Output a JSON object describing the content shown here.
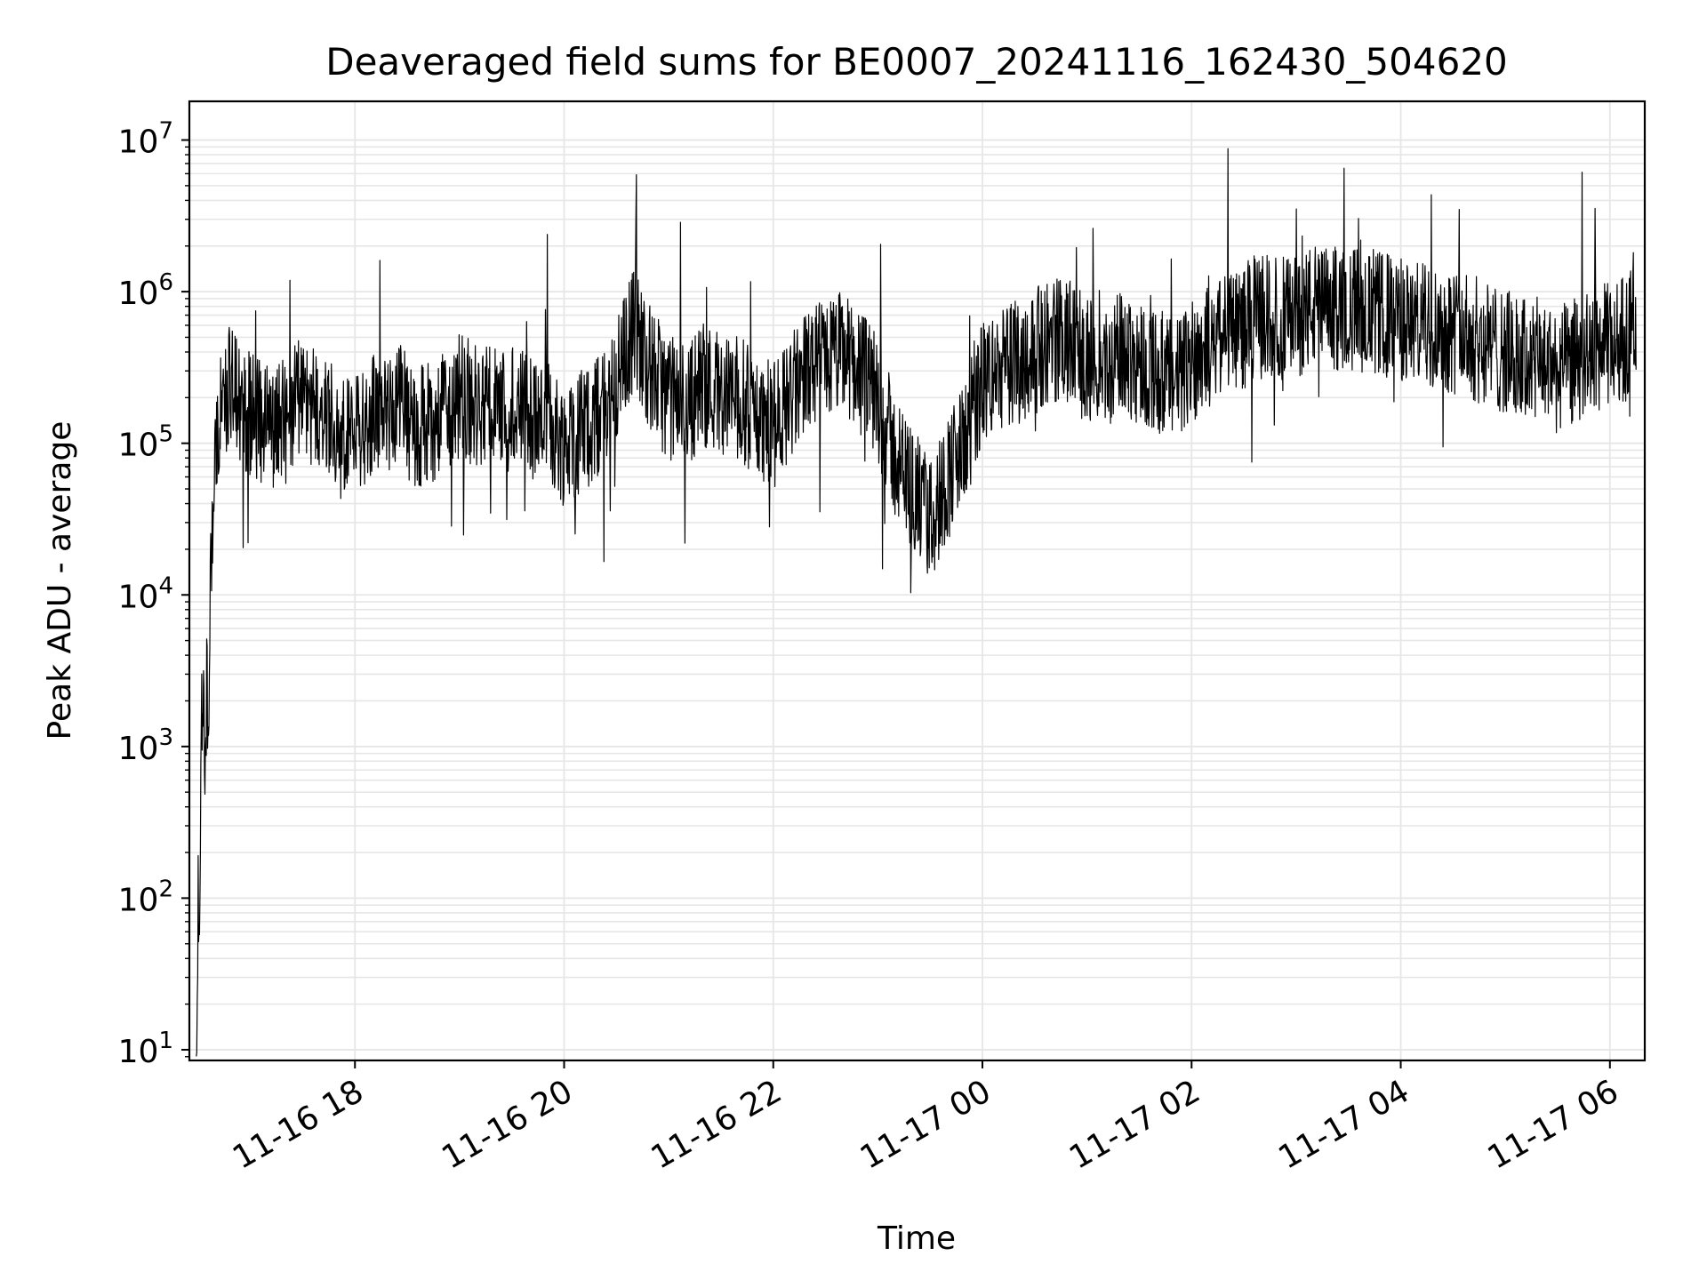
{
  "chart_data": {
    "type": "line",
    "title": "Deaveraged field sums for BE0007_20241116_162430_504620",
    "xlabel": "Time",
    "ylabel": "Peak ADU - average",
    "y_scale": "log",
    "grid": true,
    "line_color": "#000000",
    "grid_color": "#e6e6e6",
    "xlim": [
      "2024-11-16 16:25",
      "2024-11-17 06:20"
    ],
    "ylim": [
      8.5,
      18000000
    ],
    "x_ticks": [
      {
        "value": "2024-11-16 18:00",
        "label": "11-16 18"
      },
      {
        "value": "2024-11-16 20:00",
        "label": "11-16 20"
      },
      {
        "value": "2024-11-16 22:00",
        "label": "11-16 22"
      },
      {
        "value": "2024-11-17 00:00",
        "label": "11-17 00"
      },
      {
        "value": "2024-11-17 02:00",
        "label": "11-17 02"
      },
      {
        "value": "2024-11-17 04:00",
        "label": "11-17 04"
      },
      {
        "value": "2024-11-17 06:00",
        "label": "11-17 06"
      }
    ],
    "y_ticks": [
      {
        "value": 10,
        "base": "10",
        "exp": "1"
      },
      {
        "value": 100,
        "base": "10",
        "exp": "2"
      },
      {
        "value": 1000,
        "base": "10",
        "exp": "3"
      },
      {
        "value": 10000,
        "base": "10",
        "exp": "4"
      },
      {
        "value": 100000,
        "base": "10",
        "exp": "5"
      },
      {
        "value": 1000000,
        "base": "10",
        "exp": "6"
      },
      {
        "value": 10000000,
        "base": "10",
        "exp": "7"
      }
    ],
    "series": [
      {
        "x": [
          "2024-11-16 16:29",
          "2024-11-16 16:30",
          "2024-11-16 16:31",
          "2024-11-16 16:32",
          "2024-11-16 16:33",
          "2024-11-16 16:34",
          "2024-11-16 16:35",
          "2024-11-16 16:36",
          "2024-11-16 16:37",
          "2024-11-16 16:38",
          "2024-11-16 16:40",
          "2024-11-16 16:42",
          "2024-11-16 16:45",
          "2024-11-16 16:50",
          "2024-11-16 16:55",
          "2024-11-16 17:00",
          "2024-11-16 17:10",
          "2024-11-16 17:20",
          "2024-11-16 17:30",
          "2024-11-16 17:40",
          "2024-11-16 17:50",
          "2024-11-16 18:00",
          "2024-11-16 18:10",
          "2024-11-16 18:20",
          "2024-11-16 18:25",
          "2024-11-16 18:30",
          "2024-11-16 18:40",
          "2024-11-16 18:50",
          "2024-11-16 19:00",
          "2024-11-16 19:10",
          "2024-11-16 19:20",
          "2024-11-16 19:30",
          "2024-11-16 19:40",
          "2024-11-16 19:50",
          "2024-11-16 20:00",
          "2024-11-16 20:10",
          "2024-11-16 20:20",
          "2024-11-16 20:30",
          "2024-11-16 20:40",
          "2024-11-16 20:50",
          "2024-11-16 21:00",
          "2024-11-16 21:10",
          "2024-11-16 21:20",
          "2024-11-16 21:30",
          "2024-11-16 21:40",
          "2024-11-16 21:50",
          "2024-11-16 22:00",
          "2024-11-16 22:10",
          "2024-11-16 22:20",
          "2024-11-16 22:30",
          "2024-11-16 22:40",
          "2024-11-16 22:50",
          "2024-11-16 23:00",
          "2024-11-16 23:10",
          "2024-11-16 23:20",
          "2024-11-16 23:30",
          "2024-11-16 23:40",
          "2024-11-16 23:50",
          "2024-11-17 00:00",
          "2024-11-17 00:10",
          "2024-11-17 00:20",
          "2024-11-17 00:30",
          "2024-11-17 00:40",
          "2024-11-17 00:50",
          "2024-11-17 01:00",
          "2024-11-17 01:10",
          "2024-11-17 01:20",
          "2024-11-17 01:30",
          "2024-11-17 01:40",
          "2024-11-17 01:50",
          "2024-11-17 02:00",
          "2024-11-17 02:10",
          "2024-11-17 02:20",
          "2024-11-17 02:30",
          "2024-11-17 02:40",
          "2024-11-17 02:50",
          "2024-11-17 03:00",
          "2024-11-17 03:10",
          "2024-11-17 03:20",
          "2024-11-17 03:30",
          "2024-11-17 03:40",
          "2024-11-17 03:50",
          "2024-11-17 04:00",
          "2024-11-17 04:10",
          "2024-11-17 04:20",
          "2024-11-17 04:30",
          "2024-11-17 04:40",
          "2024-11-17 04:50",
          "2024-11-17 05:00",
          "2024-11-17 05:10",
          "2024-11-17 05:20",
          "2024-11-17 05:30",
          "2024-11-17 05:40",
          "2024-11-17 05:50",
          "2024-11-17 06:00",
          "2024-11-17 06:10",
          "2024-11-17 06:15"
        ],
        "values": [
          9,
          100,
          50,
          1500,
          3000,
          800,
          2500,
          1000,
          10000,
          30000,
          80000,
          150000,
          200000,
          250000,
          180000,
          150000,
          130000,
          140000,
          200000,
          150000,
          120000,
          130000,
          150000,
          160000,
          200000,
          140000,
          130000,
          150000,
          200000,
          180000,
          160000,
          170000,
          150000,
          140000,
          100000,
          120000,
          150000,
          250000,
          600000,
          300000,
          200000,
          180000,
          250000,
          220000,
          200000,
          150000,
          130000,
          200000,
          300000,
          350000,
          400000,
          300000,
          200000,
          80000,
          50000,
          30000,
          60000,
          100000,
          250000,
          300000,
          350000,
          400000,
          500000,
          450000,
          350000,
          300000,
          400000,
          350000,
          300000,
          250000,
          350000,
          500000,
          550000,
          600000,
          700000,
          650000,
          700000,
          800000,
          750000,
          800000,
          750000,
          700000,
          650000,
          600000,
          600000,
          550000,
          500000,
          450000,
          400000,
          350000,
          350000,
          300000,
          350000,
          400000,
          450000,
          500000,
          800000
        ]
      }
    ]
  }
}
